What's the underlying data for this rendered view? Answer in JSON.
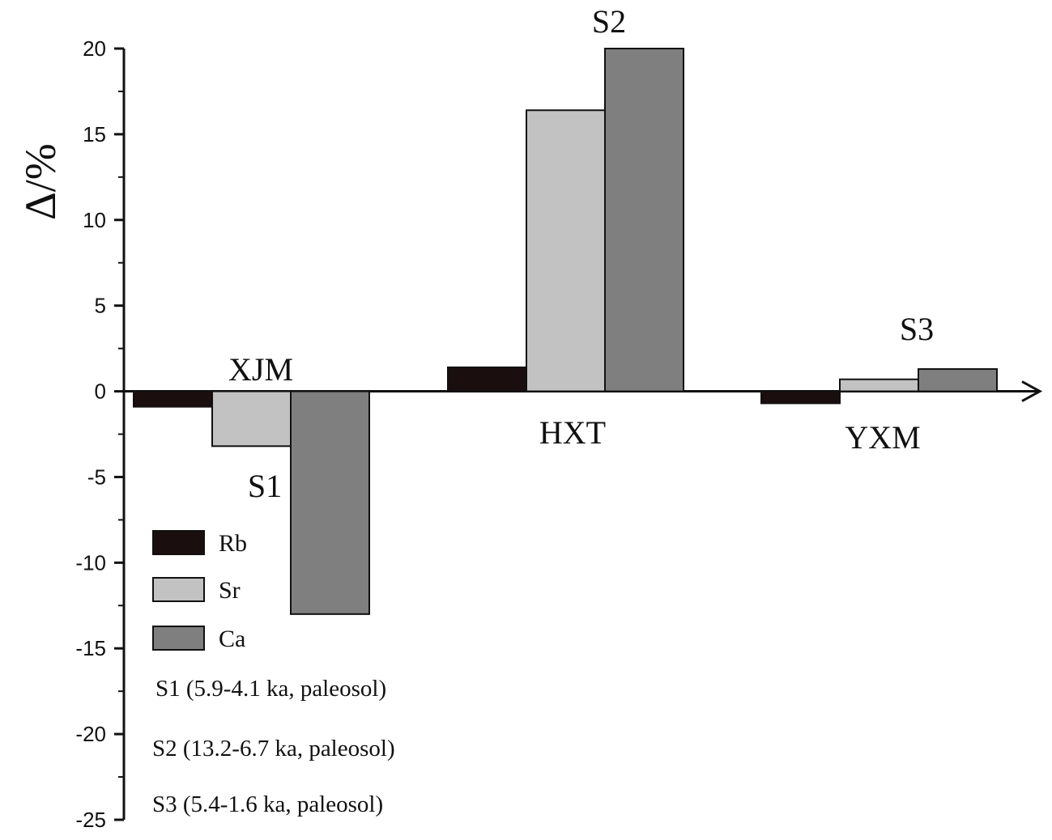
{
  "chart_data": {
    "type": "bar",
    "title": "",
    "xlabel": "",
    "ylabel": "Δ/%",
    "ylim": [
      -25,
      20
    ],
    "yticks": [
      20,
      15,
      10,
      5,
      0,
      -5,
      -10,
      -15,
      -20,
      -25
    ],
    "ytick_labels": [
      "20",
      "15",
      "10",
      "5",
      "0",
      "-5",
      "-10",
      "-15",
      "-20",
      "-25"
    ],
    "categories": [
      "XJM",
      "HXT",
      "YXM"
    ],
    "series": [
      {
        "name": "Rb",
        "color": "#1a0e0e",
        "values": [
          -0.9,
          1.4,
          -0.7
        ]
      },
      {
        "name": "Sr",
        "color": "#c2c2c2",
        "values": [
          -3.2,
          16.4,
          0.7
        ]
      },
      {
        "name": "Ca",
        "color": "#7f7f7f",
        "values": [
          -13.0,
          20.0,
          1.3
        ]
      }
    ],
    "paleosol_labels": [
      "S1",
      "S2",
      "S3"
    ],
    "notes": [
      "S1 (5.9-4.1 ka, paleosol)",
      "S2 (13.2-6.7 ka, paleosol)",
      "S3 (5.4-1.6 ka, paleosol)"
    ],
    "legend_position": "lower-left"
  }
}
